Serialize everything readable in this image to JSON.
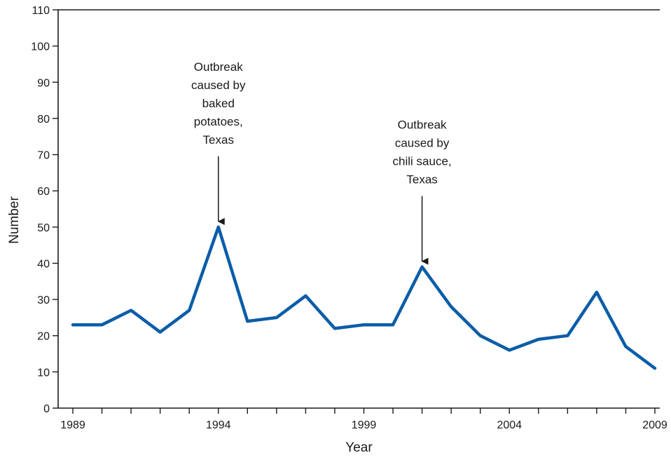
{
  "chart_data": {
    "type": "line",
    "title": "",
    "xlabel": "Year",
    "ylabel": "Number",
    "xlim": [
      1989,
      2009
    ],
    "ylim": [
      0,
      110
    ],
    "x_ticks": [
      1989,
      1994,
      1999,
      2004,
      2009
    ],
    "y_ticks": [
      0,
      10,
      20,
      30,
      40,
      50,
      60,
      70,
      80,
      90,
      100,
      110
    ],
    "grid": false,
    "series": [
      {
        "color": "#0a5da8",
        "x": [
          1989,
          1990,
          1991,
          1992,
          1993,
          1994,
          1995,
          1996,
          1997,
          1998,
          1999,
          2000,
          2001,
          2002,
          2003,
          2004,
          2005,
          2006,
          2007,
          2008,
          2009
        ],
        "values": [
          23,
          23,
          27,
          21,
          27,
          50,
          24,
          25,
          31,
          22,
          23,
          23,
          39,
          28,
          20,
          16,
          19,
          20,
          32,
          17,
          11
        ]
      }
    ],
    "annotations": [
      {
        "x": 1994,
        "y": 50,
        "lines": [
          "Outbreak",
          "caused by",
          "baked",
          "potatoes,",
          "Texas"
        ]
      },
      {
        "x": 2001,
        "y": 39,
        "lines": [
          "Outbreak",
          "caused by",
          "chili sauce,",
          "Texas"
        ]
      }
    ]
  }
}
